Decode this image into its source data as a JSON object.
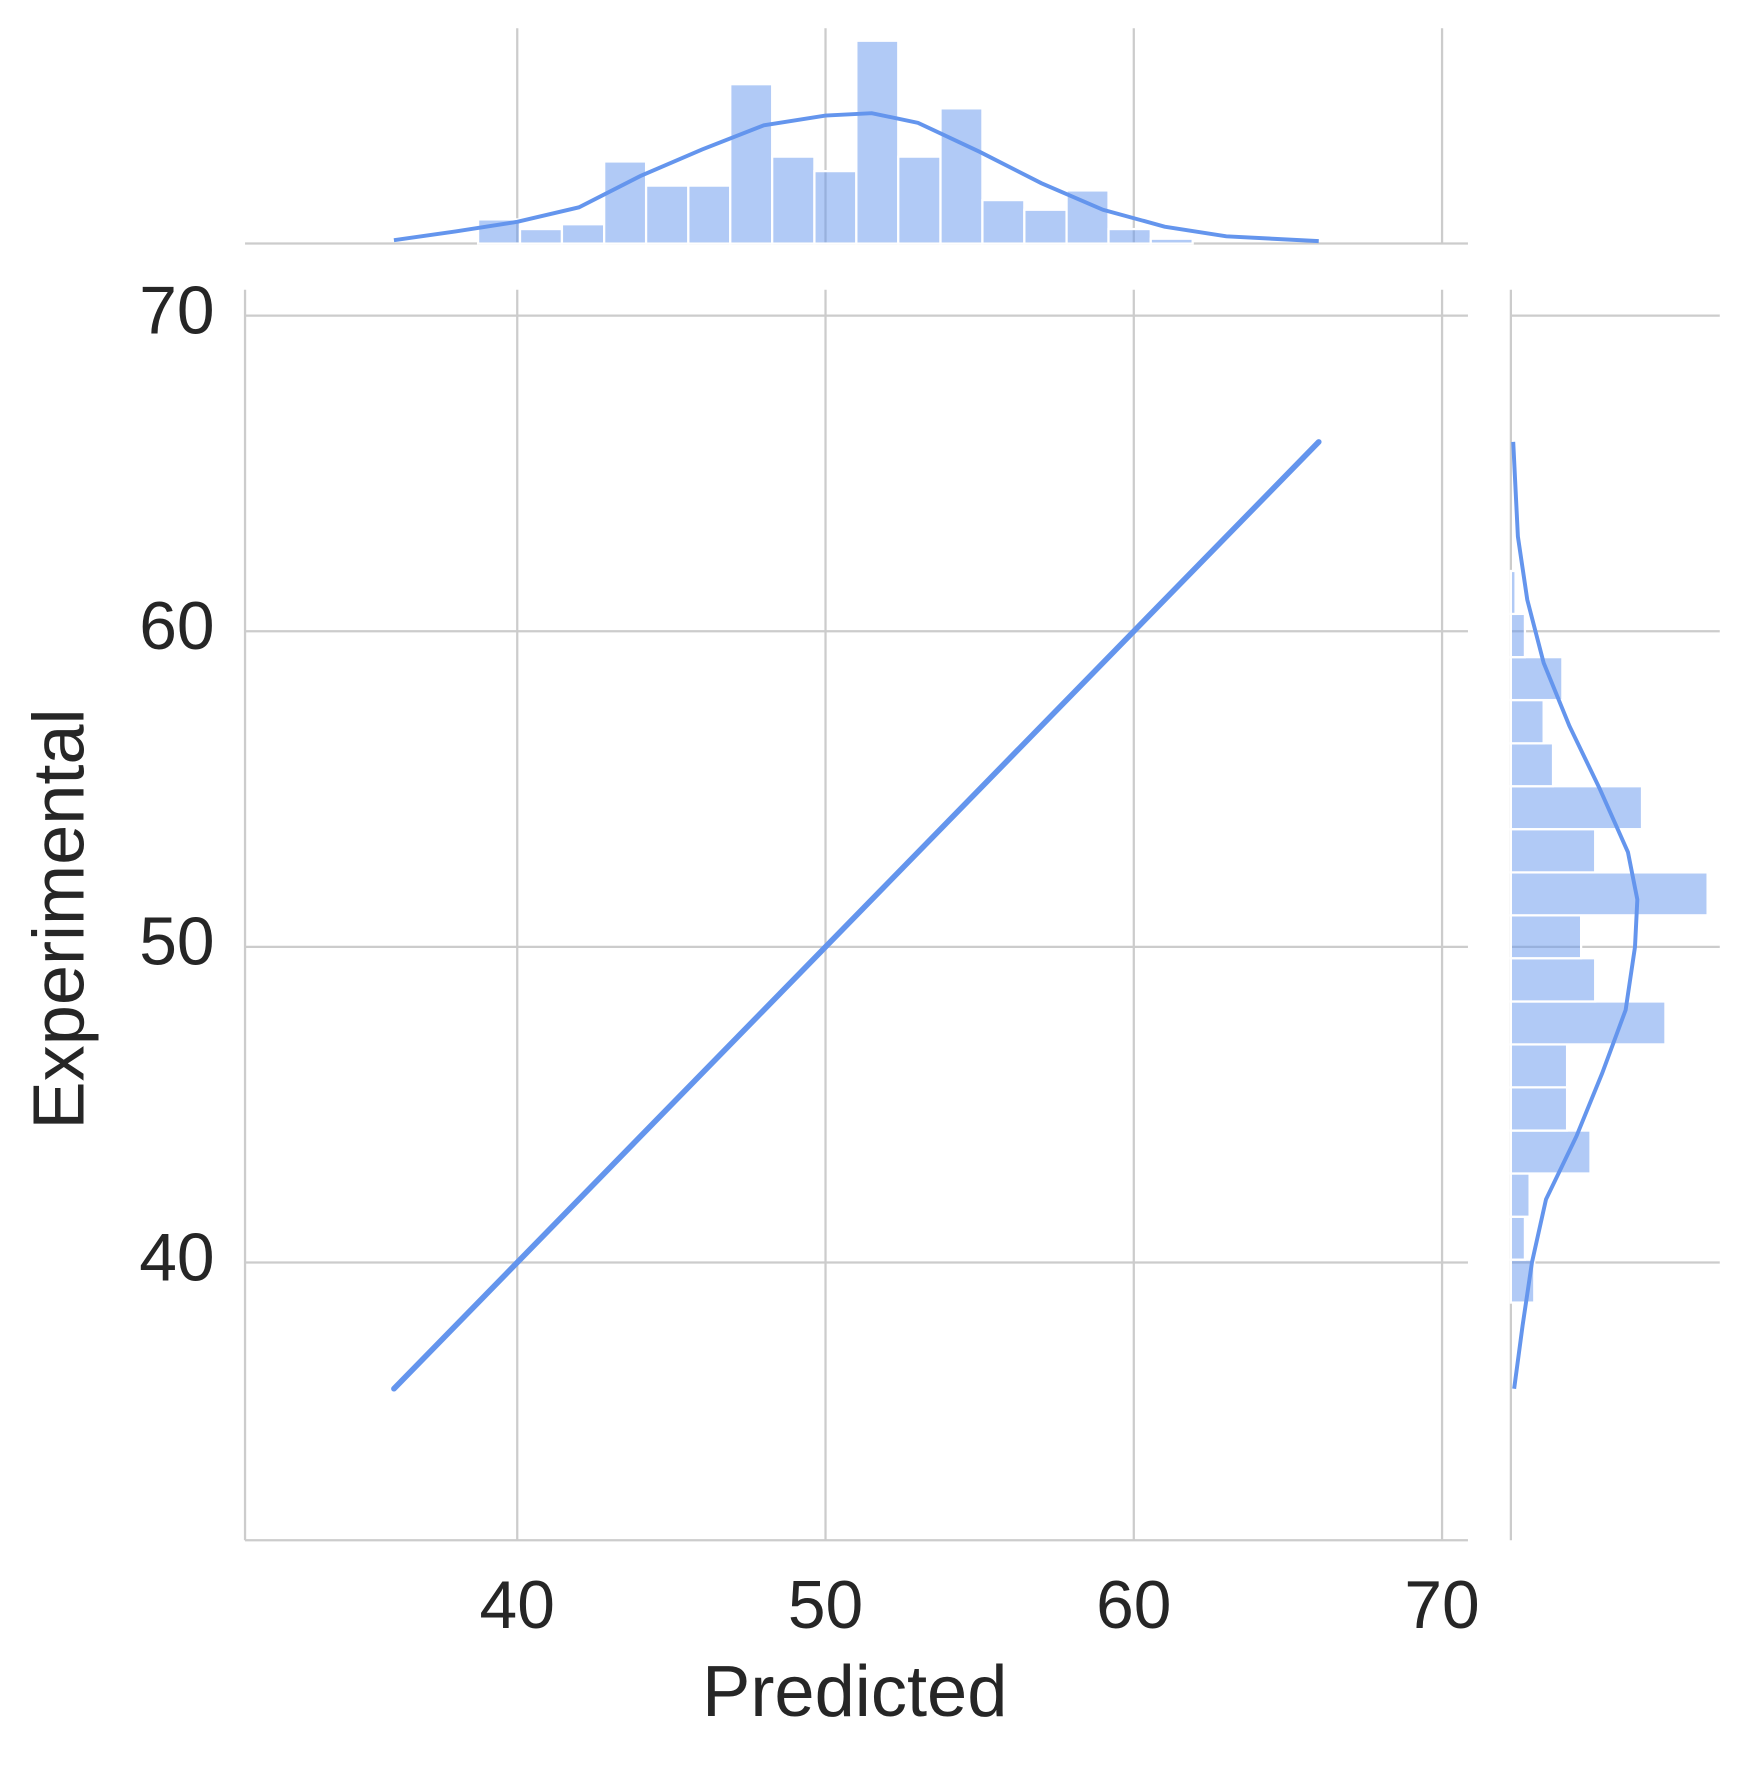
{
  "chart_data": {
    "type": "line",
    "xlabel": "Predicted",
    "ylabel": "Experimental",
    "x": [
      36,
      66
    ],
    "values": [
      36,
      66
    ],
    "color": "#6495ED",
    "xlim": [
      31.17,
      70.84
    ],
    "ylim": [
      31.2,
      70.82
    ],
    "xticks": [
      40,
      50,
      60,
      70
    ],
    "yticks": [
      40,
      50,
      60,
      70
    ],
    "grid": true,
    "marginal": {
      "type": "histogram",
      "bins": [
        36,
        37.36,
        38.73,
        40.09,
        41.45,
        42.82,
        44.18,
        45.55,
        46.91,
        48.27,
        49.64,
        51,
        52.36,
        53.73,
        55.09,
        56.45,
        57.82,
        59.18,
        60.55,
        61.91,
        63.27,
        64.64,
        66
      ],
      "counts": [
        0,
        0,
        5,
        3,
        4,
        17,
        12,
        12,
        33,
        18,
        15,
        42,
        18,
        28,
        9,
        7,
        11,
        3,
        1,
        0,
        0,
        0
      ],
      "kde_x": [
        36,
        38,
        40,
        42,
        44,
        46,
        48,
        50,
        51.5,
        53,
        55,
        57,
        59,
        61,
        63,
        66
      ],
      "kde_values": [
        0.7,
        2.5,
        4.5,
        7.5,
        14,
        19.5,
        24.5,
        26.5,
        27,
        25,
        19,
        12.5,
        7,
        3.5,
        1.5,
        0.5
      ],
      "count_lim": [
        0,
        44.6
      ]
    }
  }
}
